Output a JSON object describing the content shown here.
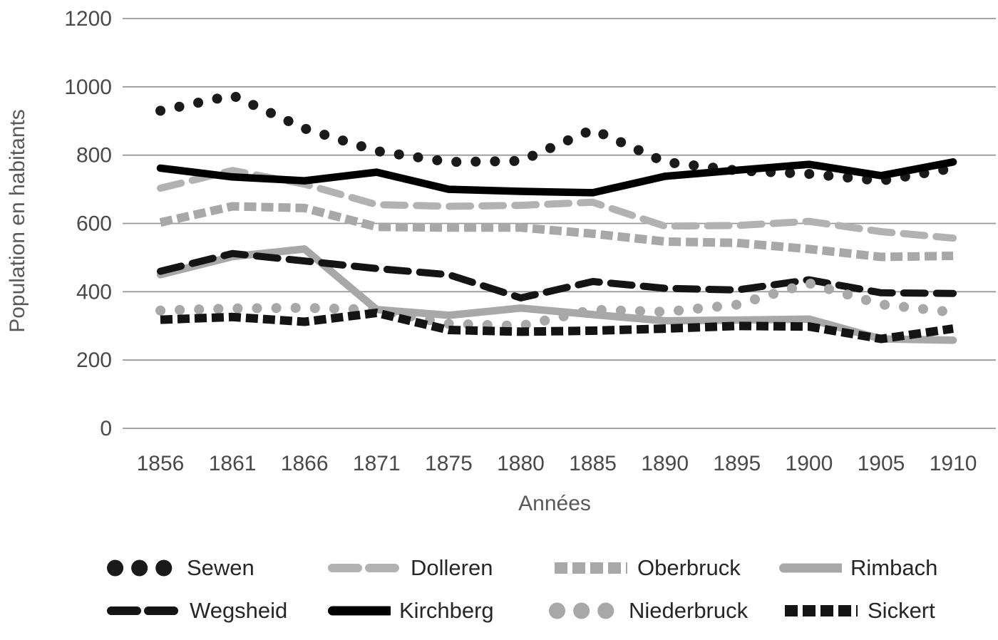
{
  "chart_data": {
    "type": "line",
    "title": "",
    "xlabel": "Années",
    "ylabel": "Population en habitants",
    "categories": [
      "1856",
      "1861",
      "1866",
      "1871",
      "1875",
      "1880",
      "1885",
      "1890",
      "1895",
      "1900",
      "1905",
      "1910"
    ],
    "y_ticks": [
      1200,
      1000,
      800,
      600,
      400,
      200,
      0
    ],
    "ylim": [
      0,
      1200
    ],
    "grid": "horizontal-only",
    "legend_position": "bottom-two-rows",
    "series": [
      {
        "name": "Sewen",
        "color": "#1a1a1a",
        "style": "dotted",
        "values": [
          930,
          975,
          878,
          812,
          780,
          783,
          875,
          780,
          755,
          745,
          725,
          762
        ]
      },
      {
        "name": "Dolleren",
        "color": "#b2b2b2",
        "style": "dashed",
        "values": [
          703,
          755,
          715,
          655,
          650,
          653,
          662,
          592,
          594,
          606,
          576,
          557
        ]
      },
      {
        "name": "Oberbruck",
        "color": "#a8a8a8",
        "style": "square-dash",
        "values": [
          603,
          650,
          645,
          590,
          588,
          588,
          570,
          547,
          543,
          525,
          502,
          505
        ]
      },
      {
        "name": "Rimbach",
        "color": "#a8a8a8",
        "style": "solid",
        "values": [
          450,
          503,
          525,
          348,
          331,
          352,
          333,
          315,
          317,
          320,
          262,
          258
        ]
      },
      {
        "name": "Wegsheid",
        "color": "#141414",
        "style": "dashed",
        "values": [
          460,
          512,
          490,
          468,
          450,
          382,
          430,
          410,
          405,
          435,
          397,
          395
        ]
      },
      {
        "name": "Kirchberg",
        "color": "#000000",
        "style": "solid",
        "values": [
          762,
          736,
          725,
          750,
          700,
          694,
          690,
          738,
          756,
          773,
          740,
          780
        ]
      },
      {
        "name": "Niederbruck",
        "color": "#a8a8a8",
        "style": "dotted",
        "values": [
          345,
          351,
          353,
          347,
          306,
          300,
          347,
          341,
          362,
          425,
          363,
          340
        ]
      },
      {
        "name": "Sickert",
        "color": "#141414",
        "style": "square-dash",
        "values": [
          318,
          326,
          312,
          338,
          288,
          283,
          286,
          292,
          300,
          298,
          262,
          292
        ]
      }
    ]
  }
}
